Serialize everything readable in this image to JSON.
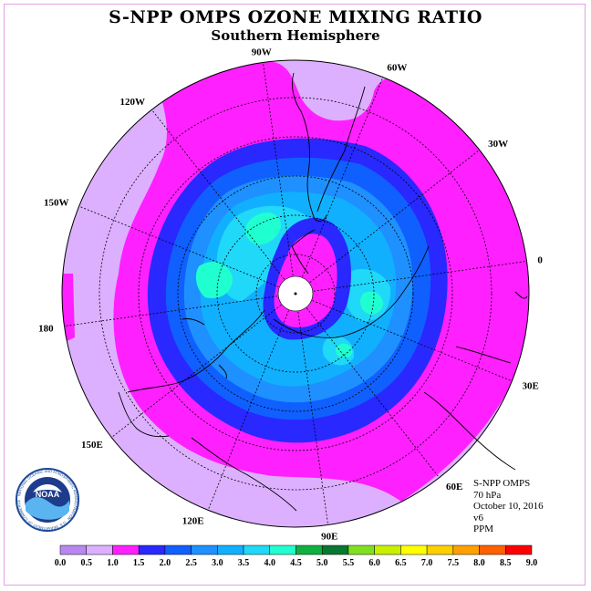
{
  "title": "S-NPP OMPS OZONE MIXING RATIO",
  "subtitle": "Southern Hemisphere",
  "longitude_labels": [
    "90W",
    "60W",
    "30W",
    "0",
    "30E",
    "60E",
    "90E",
    "120E",
    "150E",
    "180",
    "150W",
    "120W"
  ],
  "info": {
    "instrument": "S-NPP OMPS",
    "pressure": "70 hPa",
    "date": "October 10, 2016",
    "version": "v6",
    "units": "PPM"
  },
  "logo": {
    "text": "NOAA",
    "ring_text": "NATIONAL OCEANIC AND ATMOSPHERIC ADMINISTRATION · U.S. DEPARTMENT OF COMMERCE"
  },
  "colorbar": {
    "ticks": [
      "0.0",
      "0.5",
      "1.0",
      "1.5",
      "2.0",
      "2.5",
      "3.0",
      "3.5",
      "4.0",
      "4.5",
      "5.0",
      "5.5",
      "6.0",
      "6.5",
      "7.0",
      "7.5",
      "8.0",
      "8.5",
      "9.0"
    ],
    "colors": [
      "#b888f0",
      "#dcb0ff",
      "#ff20ff",
      "#2828ff",
      "#1060ff",
      "#1e90ff",
      "#10b0ff",
      "#20d8f8",
      "#20ffd0",
      "#10b040",
      "#087830",
      "#80e020",
      "#c8f000",
      "#ffff00",
      "#ffd000",
      "#ffa000",
      "#ff6000",
      "#ff0000",
      "#905030"
    ]
  },
  "colors": {
    "outer": "#dcb0ff",
    "magenta": "#ff20ff",
    "blue": "#2828ff",
    "blue2": "#1060ff",
    "blue3": "#1e90ff",
    "cyan": "#10b0ff",
    "cyan2": "#20d8f8",
    "aqua": "#20ffd0"
  }
}
